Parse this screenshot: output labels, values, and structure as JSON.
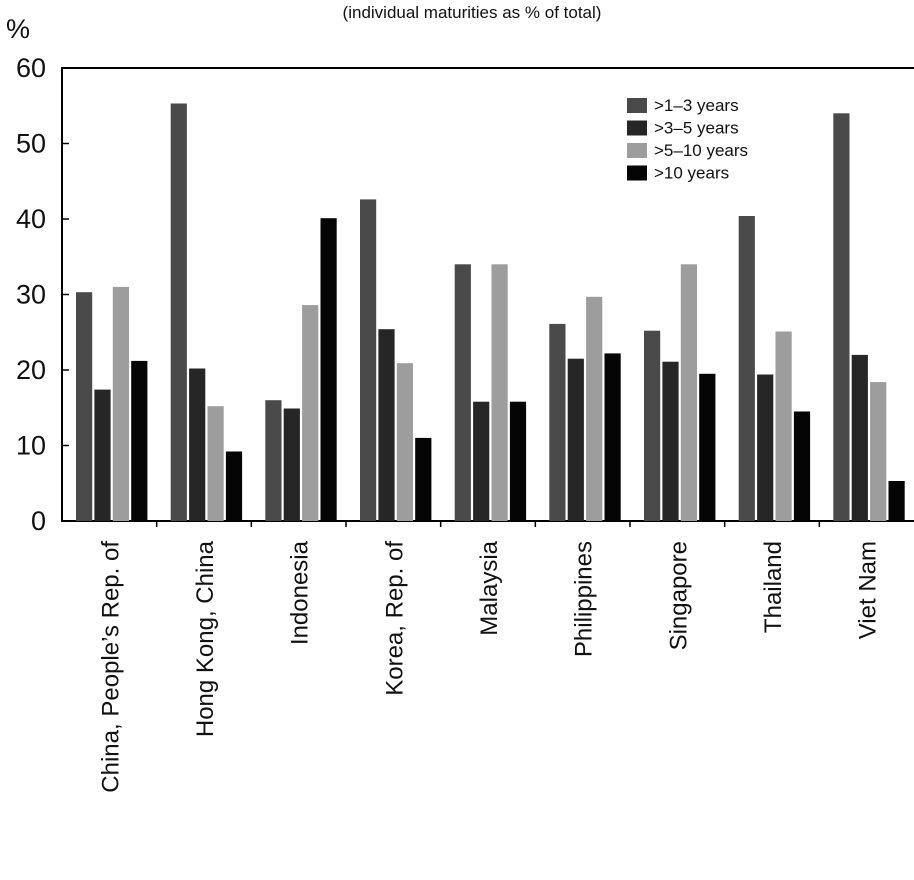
{
  "chart_data": {
    "type": "bar",
    "subtitle": "(individual maturities as % of total)",
    "ylabel": "%",
    "ylim": [
      0,
      60
    ],
    "yticks": [
      0,
      10,
      20,
      30,
      40,
      50,
      60
    ],
    "legend_position": "top-right",
    "categories": [
      "China, People’s Rep. of",
      "Hong Kong, China",
      "Indonesia",
      "Korea, Rep. of",
      "Malaysia",
      "Philippines",
      "Singapore",
      "Thailand",
      "Viet Nam"
    ],
    "series": [
      {
        "name": ">1–3 years",
        "color": "#4a4a4a",
        "values": [
          30.3,
          55.3,
          16.0,
          42.6,
          34.0,
          26.1,
          25.2,
          40.4,
          54.0
        ]
      },
      {
        "name": ">3–5 years",
        "color": "#262626",
        "values": [
          17.4,
          20.2,
          14.9,
          25.4,
          15.8,
          21.5,
          21.1,
          19.4,
          22.0
        ]
      },
      {
        "name": ">5–10 years",
        "color": "#9d9d9d",
        "values": [
          31.0,
          15.2,
          28.6,
          20.9,
          34.0,
          29.7,
          34.0,
          25.1,
          18.4
        ]
      },
      {
        "name": ">10 years",
        "color": "#050505",
        "values": [
          21.2,
          9.2,
          40.1,
          11.0,
          15.8,
          22.2,
          19.5,
          14.5,
          5.3
        ]
      }
    ]
  }
}
